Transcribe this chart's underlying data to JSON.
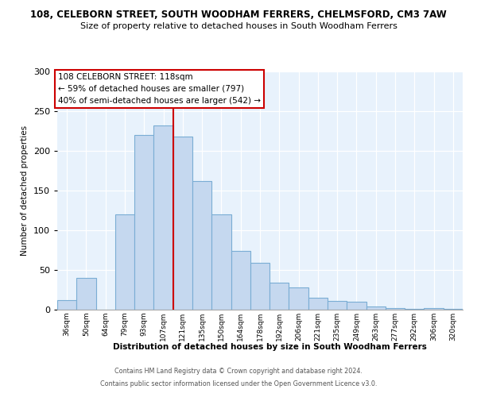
{
  "title_main": "108, CELEBORN STREET, SOUTH WOODHAM FERRERS, CHELMSFORD, CM3 7AW",
  "title_sub": "Size of property relative to detached houses in South Woodham Ferrers",
  "xlabel": "Distribution of detached houses by size in South Woodham Ferrers",
  "ylabel": "Number of detached properties",
  "bar_labels": [
    "36sqm",
    "50sqm",
    "64sqm",
    "79sqm",
    "93sqm",
    "107sqm",
    "121sqm",
    "135sqm",
    "150sqm",
    "164sqm",
    "178sqm",
    "192sqm",
    "206sqm",
    "221sqm",
    "235sqm",
    "249sqm",
    "263sqm",
    "277sqm",
    "292sqm",
    "306sqm",
    "320sqm"
  ],
  "bar_values": [
    12,
    40,
    0,
    120,
    220,
    232,
    218,
    162,
    120,
    74,
    59,
    34,
    28,
    15,
    11,
    10,
    4,
    2,
    1,
    2,
    1
  ],
  "bar_color": "#c5d8ef",
  "bar_edge_color": "#7aadd4",
  "vline_color": "#cc0000",
  "annotation_box_text": "108 CELEBORN STREET: 118sqm\n← 59% of detached houses are smaller (797)\n40% of semi-detached houses are larger (542) →",
  "ylim": [
    0,
    300
  ],
  "yticks": [
    0,
    50,
    100,
    150,
    200,
    250,
    300
  ],
  "plot_bg_color": "#e8f2fc",
  "background_color": "#ffffff",
  "footer_line1": "Contains HM Land Registry data © Crown copyright and database right 2024.",
  "footer_line2": "Contains public sector information licensed under the Open Government Licence v3.0."
}
